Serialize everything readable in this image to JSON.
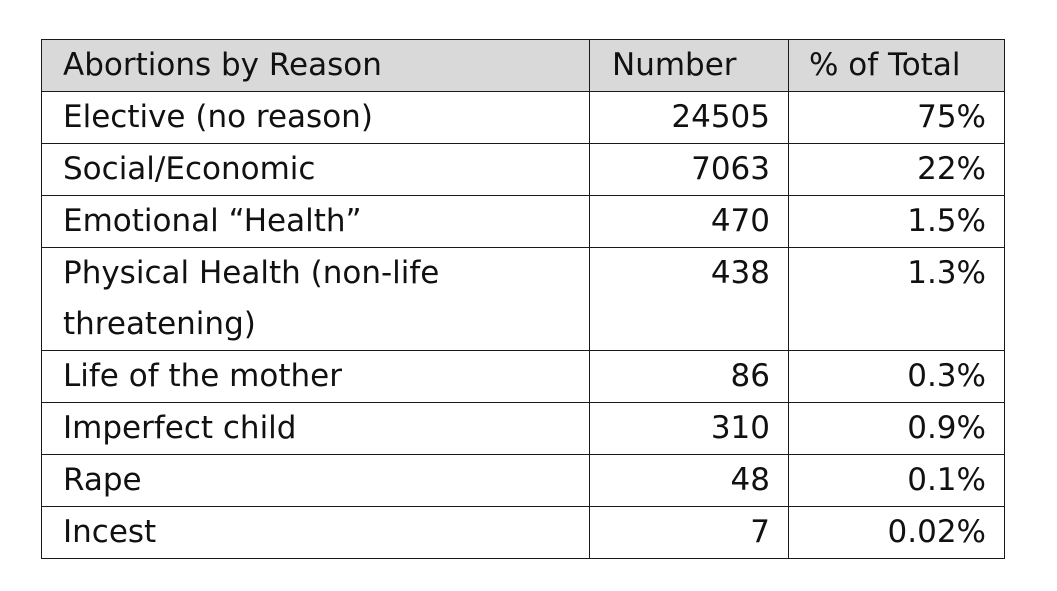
{
  "table": {
    "headers": [
      "Abortions by Reason",
      "Number",
      "% of Total"
    ],
    "rows": [
      {
        "reason": "Elective (no reason)",
        "number": "24505",
        "percent": "75%"
      },
      {
        "reason": "Social/Economic",
        "number": "7063",
        "percent": "22%"
      },
      {
        "reason": "Emotional “Health”",
        "number": "470",
        "percent": "1.5%"
      },
      {
        "reason": "Physical Health (non-life threatening)",
        "number": "438",
        "percent": "1.3%"
      },
      {
        "reason": "Life of the mother",
        "number": "86",
        "percent": "0.3%"
      },
      {
        "reason": "Imperfect child",
        "number": "310",
        "percent": "0.9%"
      },
      {
        "reason": "Rape",
        "number": "48",
        "percent": "0.1%"
      },
      {
        "reason": "Incest",
        "number": "7",
        "percent": "0.02%"
      }
    ]
  },
  "colors": {
    "header_background": "#d9d9d9",
    "border": "#1a1a1a",
    "text": "#111111"
  }
}
